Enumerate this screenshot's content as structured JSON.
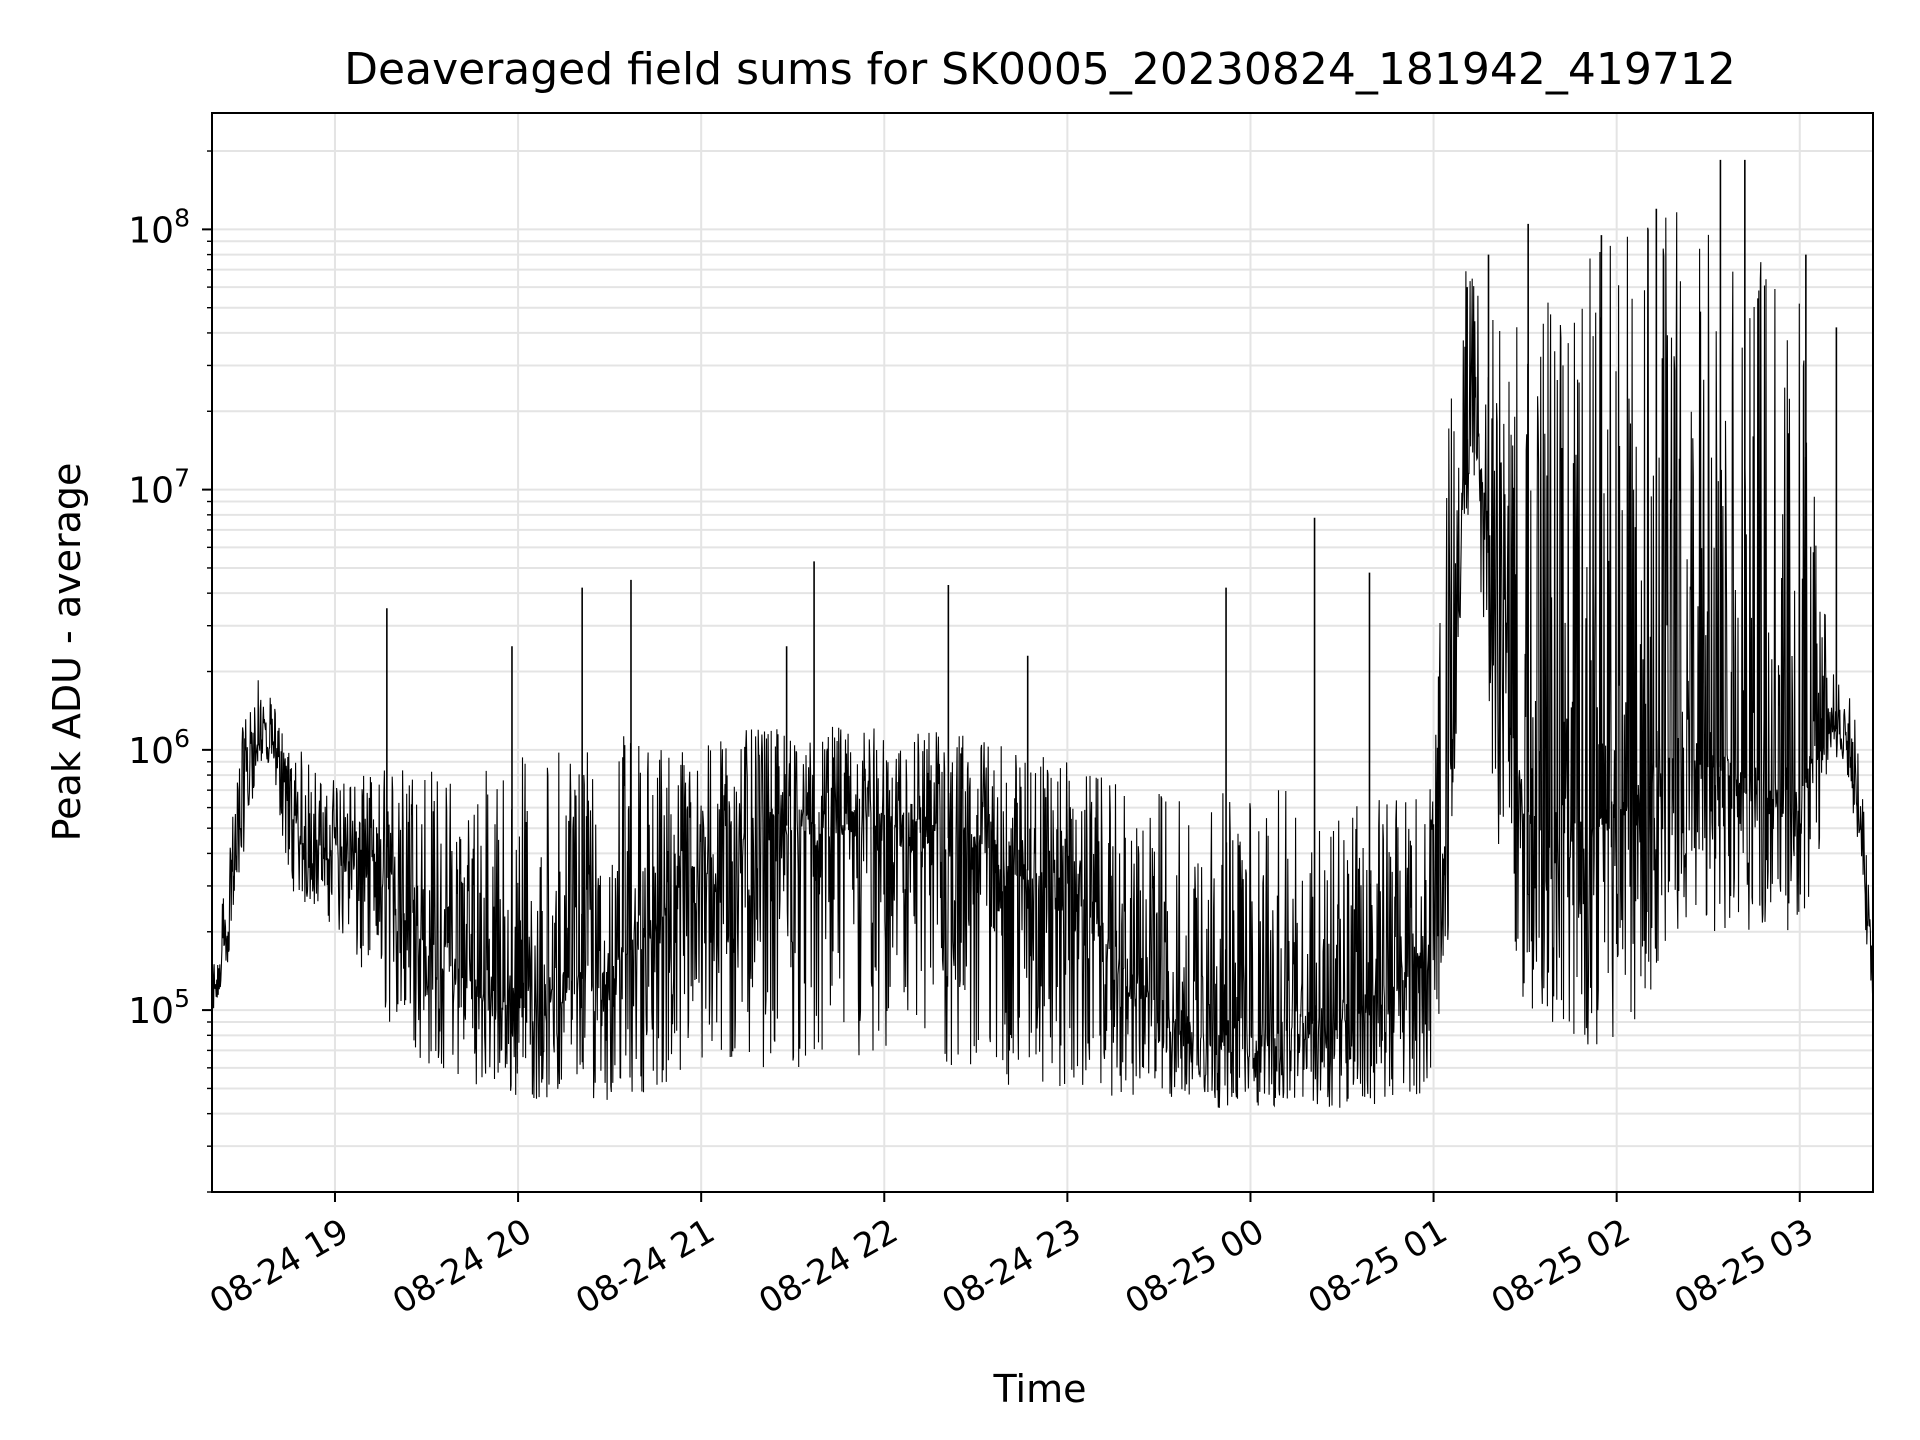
{
  "chart_data": {
    "type": "line",
    "title": "Deaveraged field sums for SK0005_20230824_181942_419712",
    "xlabel": "Time",
    "ylabel": "Peak ADU - average",
    "yscale": "log",
    "ylim": [
      20000,
      280000000
    ],
    "xlim": [
      "2023-08-24 18:19:42",
      "2023-08-25 03:24:00"
    ],
    "grid": true,
    "line_color": "#000000",
    "x_ticks": [
      {
        "label": "08-24 19",
        "value": "2023-08-24 19:00"
      },
      {
        "label": "08-24 20",
        "value": "2023-08-24 20:00"
      },
      {
        "label": "08-24 21",
        "value": "2023-08-24 21:00"
      },
      {
        "label": "08-24 22",
        "value": "2023-08-24 22:00"
      },
      {
        "label": "08-24 23",
        "value": "2023-08-24 23:00"
      },
      {
        "label": "08-25 00",
        "value": "2023-08-25 00:00"
      },
      {
        "label": "08-25 01",
        "value": "2023-08-25 01:00"
      },
      {
        "label": "08-25 02",
        "value": "2023-08-25 02:00"
      },
      {
        "label": "08-25 03",
        "value": "2023-08-25 03:00"
      }
    ],
    "y_ticks": [
      {
        "base": "10",
        "exp": "5",
        "value": 100000
      },
      {
        "base": "10",
        "exp": "6",
        "value": 1000000
      },
      {
        "base": "10",
        "exp": "7",
        "value": 10000000
      },
      {
        "base": "10",
        "exp": "8",
        "value": 100000000
      }
    ],
    "series": [
      {
        "x": [
          "2023-08-24 18:20",
          "2023-08-24 18:25",
          "2023-08-24 18:30",
          "2023-08-24 18:35",
          "2023-08-24 18:40",
          "2023-08-24 18:45",
          "2023-08-24 18:50",
          "2023-08-24 18:55",
          "2023-08-24 19:00",
          "2023-08-24 19:10",
          "2023-08-24 19:20",
          "2023-08-24 19:30",
          "2023-08-24 19:40",
          "2023-08-24 19:50",
          "2023-08-24 20:00",
          "2023-08-24 20:10",
          "2023-08-24 20:20",
          "2023-08-24 20:30",
          "2023-08-24 20:40",
          "2023-08-24 20:50",
          "2023-08-24 21:00",
          "2023-08-24 21:10",
          "2023-08-24 21:20",
          "2023-08-24 21:30",
          "2023-08-24 21:40",
          "2023-08-24 21:50",
          "2023-08-24 22:00",
          "2023-08-24 22:10",
          "2023-08-24 22:20",
          "2023-08-24 22:30",
          "2023-08-24 22:40",
          "2023-08-24 22:50",
          "2023-08-24 23:00",
          "2023-08-24 23:10",
          "2023-08-24 23:20",
          "2023-08-24 23:30",
          "2023-08-24 23:40",
          "2023-08-24 23:50",
          "2023-08-25 00:00",
          "2023-08-25 00:10",
          "2023-08-25 00:20",
          "2023-08-25 00:30",
          "2023-08-25 00:40",
          "2023-08-25 00:50",
          "2023-08-25 01:00",
          "2023-08-25 01:05",
          "2023-08-25 01:10",
          "2023-08-25 01:15",
          "2023-08-25 01:20",
          "2023-08-25 01:30",
          "2023-08-25 01:40",
          "2023-08-25 01:50",
          "2023-08-25 02:00",
          "2023-08-25 02:10",
          "2023-08-25 02:20",
          "2023-08-25 02:30",
          "2023-08-25 02:40",
          "2023-08-25 02:50",
          "2023-08-25 03:00",
          "2023-08-25 03:05",
          "2023-08-25 03:10",
          "2023-08-25 03:15",
          "2023-08-25 03:20",
          "2023-08-25 03:24"
        ],
        "base": [
          100000,
          200000,
          700000,
          1100000,
          1000000,
          600000,
          400000,
          420000,
          430000,
          380000,
          300000,
          180000,
          150000,
          120000,
          110000,
          110000,
          130000,
          150000,
          180000,
          250000,
          350000,
          420000,
          480000,
          520000,
          500000,
          520000,
          500000,
          480000,
          460000,
          440000,
          380000,
          330000,
          280000,
          200000,
          130000,
          100000,
          90000,
          80000,
          80000,
          85000,
          90000,
          100000,
          110000,
          130000,
          200000,
          600000,
          12000000,
          15000000,
          3000000,
          600000,
          400000,
          500000,
          600000,
          800000,
          1000000,
          900000,
          800000,
          700000,
          700000,
          900000,
          1200000,
          1200000,
          500000,
          120000
        ],
        "low": [
          90000,
          150000,
          400000,
          900000,
          800000,
          300000,
          250000,
          250000,
          200000,
          120000,
          80000,
          60000,
          55000,
          50000,
          45000,
          45000,
          45000,
          45000,
          48000,
          50000,
          52000,
          55000,
          60000,
          60000,
          55000,
          55000,
          55000,
          55000,
          55000,
          52000,
          50000,
          50000,
          48000,
          48000,
          45000,
          45000,
          43000,
          42000,
          42000,
          42000,
          42000,
          42000,
          42000,
          45000,
          50000,
          200000,
          8000000,
          5000000,
          500000,
          100000,
          70000,
          70000,
          80000,
          100000,
          200000,
          200000,
          200000,
          200000,
          200000,
          300000,
          900000,
          900000,
          300000,
          100000
        ],
        "high": [
          150000,
          400000,
          1300000,
          1900000,
          1500000,
          1000000,
          1000000,
          800000,
          800000,
          800000,
          900000,
          900000,
          800000,
          900000,
          1000000,
          1000000,
          1200000,
          1200000,
          1100000,
          1100000,
          1000000,
          1200000,
          1200000,
          1200000,
          1200000,
          1300000,
          1200000,
          1200000,
          1200000,
          1100000,
          1100000,
          1000000,
          900000,
          800000,
          700000,
          700000,
          700000,
          700000,
          700000,
          700000,
          700000,
          700000,
          700000,
          700000,
          800000,
          20000000,
          80000000,
          60000000,
          50000000,
          40000000,
          60000000,
          80000000,
          100000000,
          120000000,
          120000000,
          110000000,
          100000000,
          80000000,
          60000000,
          10000000,
          2000000,
          2000000,
          1000000,
          150000
        ]
      }
    ],
    "spikes": [
      {
        "x": "2023-08-24 19:17",
        "y": 3500000
      },
      {
        "x": "2023-08-24 19:58",
        "y": 2500000
      },
      {
        "x": "2023-08-24 20:21",
        "y": 4200000
      },
      {
        "x": "2023-08-24 20:37",
        "y": 4500000
      },
      {
        "x": "2023-08-24 21:28",
        "y": 2500000
      },
      {
        "x": "2023-08-24 21:37",
        "y": 5300000
      },
      {
        "x": "2023-08-24 22:21",
        "y": 4300000
      },
      {
        "x": "2023-08-24 22:47",
        "y": 2300000
      },
      {
        "x": "2023-08-24 23:52",
        "y": 4200000
      },
      {
        "x": "2023-08-25 00:21",
        "y": 7800000
      },
      {
        "x": "2023-08-25 00:39",
        "y": 4800000
      },
      {
        "x": "2023-08-25 01:11",
        "y": 60000000
      },
      {
        "x": "2023-08-25 01:18",
        "y": 80000000
      },
      {
        "x": "2023-08-25 01:31",
        "y": 105000000
      },
      {
        "x": "2023-08-25 01:55",
        "y": 95000000
      },
      {
        "x": "2023-08-25 02:13",
        "y": 120000000
      },
      {
        "x": "2023-08-25 02:34",
        "y": 185000000
      },
      {
        "x": "2023-08-25 02:42",
        "y": 185000000
      },
      {
        "x": "2023-08-25 03:02",
        "y": 80000000
      },
      {
        "x": "2023-08-25 03:12",
        "y": 42000000
      }
    ]
  }
}
